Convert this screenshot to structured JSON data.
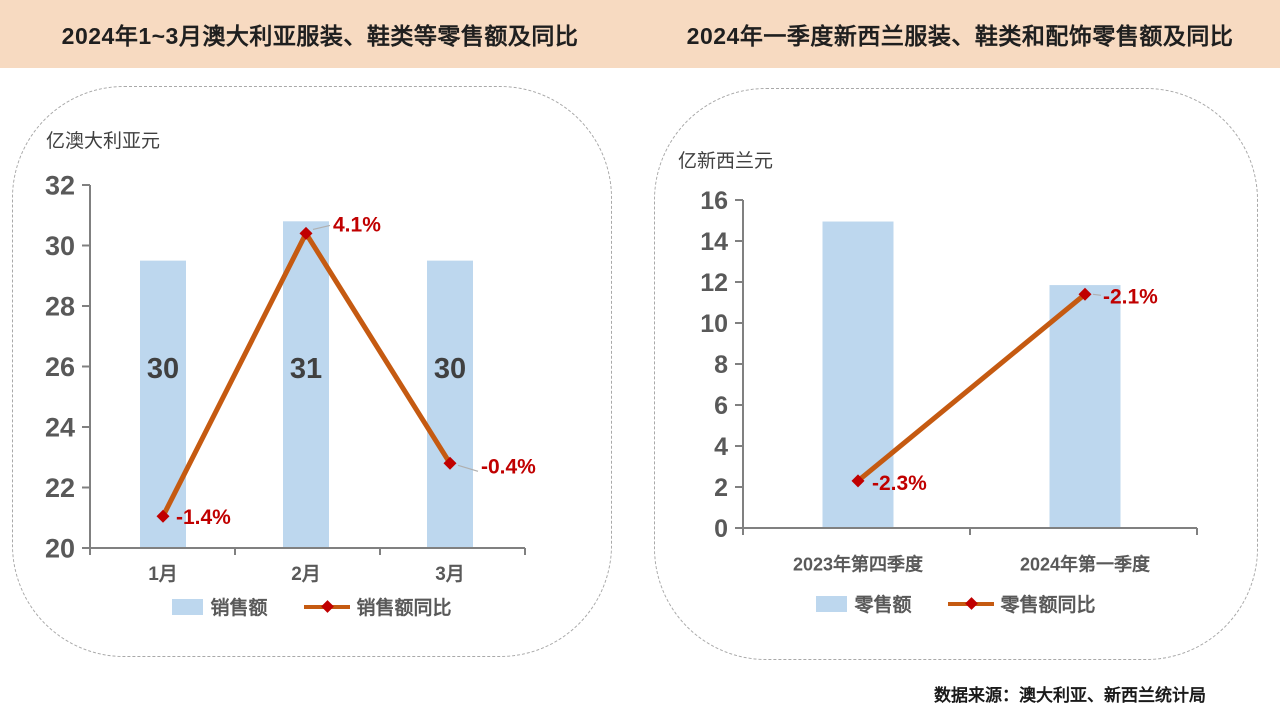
{
  "footer": {
    "source": "数据来源：澳大利亚、新西兰统计局"
  },
  "colors": {
    "header_bg": "#F7DAC1",
    "title_text": "#1F1F1F",
    "bar_fill": "#BDD7EE",
    "line": "#C55A11",
    "marker": "#C00000",
    "data_label": "#C00000",
    "axis_text": "#595959",
    "bar_label_text": "#404040",
    "axis_line": "#808080",
    "panel_border": "#A9A9A9",
    "leader_line": "#AFAFAF"
  },
  "chart_data": [
    {
      "type": "bar+line combo",
      "title": "2024年1~3月澳大利亚服装、鞋类等零售额及同比",
      "unit_label": "亿澳大利亚元",
      "categories": [
        "1月",
        "2月",
        "3月"
      ],
      "series": [
        {
          "name": "销售额",
          "type": "bar",
          "values": [
            29.5,
            30.8,
            29.5
          ],
          "data_labels": [
            "30",
            "31",
            "30"
          ]
        },
        {
          "name": "销售额同比",
          "type": "line",
          "values_pct": [
            -1.4,
            4.1,
            -0.4
          ],
          "data_labels": [
            "-1.4%",
            "4.1%",
            "-0.4%"
          ],
          "plotted_at_primary_axis": [
            21.05,
            30.4,
            22.8
          ]
        }
      ],
      "y_axis": {
        "min": 20,
        "max": 32,
        "step": 2,
        "ticks": [
          "32",
          "30",
          "28",
          "26",
          "24",
          "22",
          "20"
        ]
      },
      "legend_position": "bottom",
      "grid": false
    },
    {
      "type": "bar+line combo",
      "title": "2024年一季度新西兰服装、鞋类和配饰零售额及同比",
      "unit_label": "亿新西兰元",
      "categories": [
        "2023年第四季度",
        "2024年第一季度"
      ],
      "series": [
        {
          "name": "零售额",
          "type": "bar",
          "values": [
            14.95,
            11.85
          ],
          "data_labels": []
        },
        {
          "name": "零售额同比",
          "type": "line",
          "values_pct": [
            -2.3,
            -2.1
          ],
          "data_labels": [
            "-2.3%",
            "-2.1%"
          ],
          "plotted_at_primary_axis": [
            2.3,
            11.4
          ]
        }
      ],
      "y_axis": {
        "min": 0,
        "max": 16,
        "step": 2,
        "ticks": [
          "16",
          "14",
          "12",
          "10",
          "8",
          "6",
          "4",
          "2",
          "0"
        ]
      },
      "legend_position": "bottom",
      "grid": false
    }
  ]
}
